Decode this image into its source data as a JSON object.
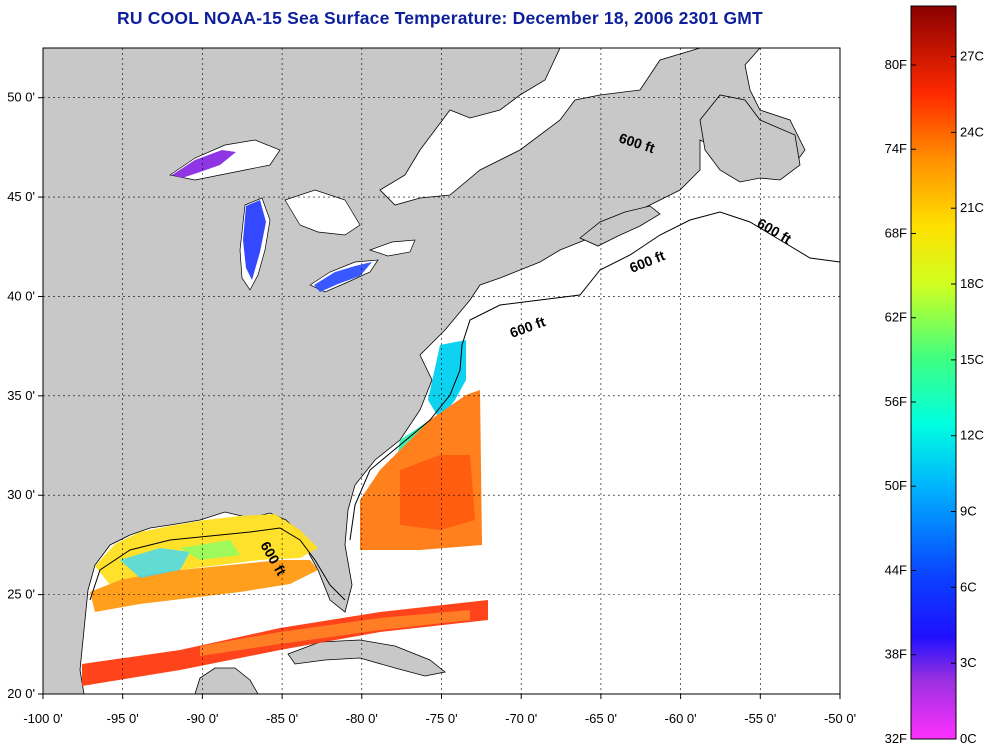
{
  "title": "RU COOL  NOAA-15  Sea Surface Temperature:  December 18, 2006 2301 GMT",
  "map": {
    "lon_range": [
      -100,
      -50
    ],
    "lat_range": [
      20,
      52.5
    ],
    "lon_ticks": [
      "-100 0'",
      "-95 0'",
      "-90 0'",
      "-85 0'",
      "-80 0'",
      "-75 0'",
      "-70 0'",
      "-65 0'",
      "-60 0'",
      "-55 0'",
      "-50 0'"
    ],
    "lat_ticks": [
      "20 0'",
      "25 0'",
      "30 0'",
      "35 0'",
      "40 0'",
      "45 0'",
      "50 0'"
    ],
    "grid": "dashed",
    "land_color": "#c8c8c8",
    "ocean_color": "#ffffff",
    "contour_labels": [
      "600 ft",
      "600 ft",
      "600 ft",
      "600 ft",
      "600 ft"
    ]
  },
  "colorbar": {
    "fahrenheit_ticks": [
      "32F",
      "38F",
      "44F",
      "50F",
      "56F",
      "62F",
      "68F",
      "74F",
      "80F"
    ],
    "celsius_ticks": [
      "0C",
      "3C",
      "6C",
      "9C",
      "12C",
      "15C",
      "18C",
      "21C",
      "24C",
      "27C"
    ],
    "range_c": [
      0,
      29
    ]
  }
}
